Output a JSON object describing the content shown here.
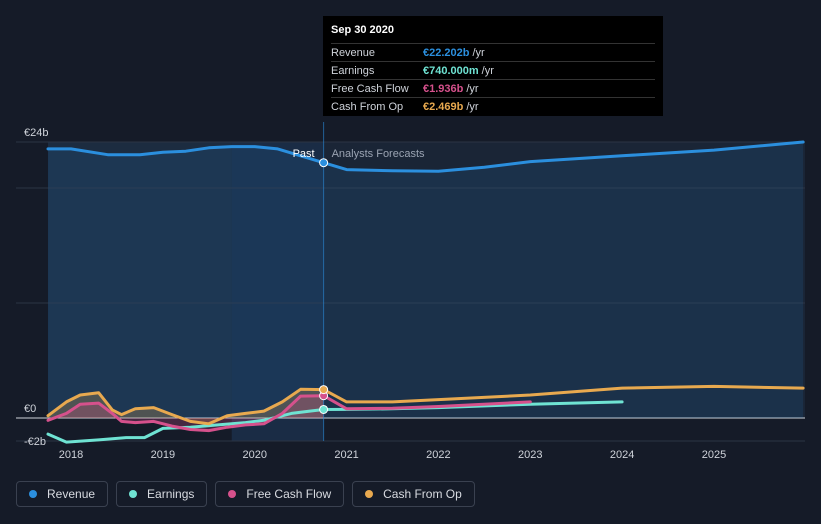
{
  "tooltip": {
    "date": "Sep 30 2020",
    "rows": [
      {
        "label": "Revenue",
        "value": "€22.202b",
        "unit": "/yr",
        "color": "#2b8fde"
      },
      {
        "label": "Earnings",
        "value": "€740.000m",
        "unit": "/yr",
        "color": "#6fe3d3"
      },
      {
        "label": "Free Cash Flow",
        "value": "€1.936b",
        "unit": "/yr",
        "color": "#d6518c"
      },
      {
        "label": "Cash From Op",
        "value": "€2.469b",
        "unit": "/yr",
        "color": "#e8a94f"
      }
    ]
  },
  "chart_data": {
    "type": "line",
    "ylim": [
      -2,
      24
    ],
    "y_tick_labels": [
      "€24b",
      "€0",
      "-€2b"
    ],
    "y_ticks": [
      24,
      0,
      -2
    ],
    "xlim": [
      2017.75,
      2025.97
    ],
    "x_ticks": [
      2018,
      2019,
      2020,
      2021,
      2022,
      2023,
      2024,
      2025
    ],
    "x_tick_labels": [
      "2018",
      "2019",
      "2020",
      "2021",
      "2022",
      "2023",
      "2024",
      "2025"
    ],
    "past_label": "Past",
    "forecast_label": "Analysts Forecasts",
    "divider_x": 2020.75,
    "series": [
      {
        "name": "Revenue",
        "color": "#2b8fde",
        "points": [
          [
            2017.75,
            23.4
          ],
          [
            2018.0,
            23.4
          ],
          [
            2018.4,
            22.9
          ],
          [
            2018.75,
            22.9
          ],
          [
            2019.0,
            23.1
          ],
          [
            2019.25,
            23.2
          ],
          [
            2019.5,
            23.5
          ],
          [
            2019.75,
            23.6
          ],
          [
            2020.0,
            23.6
          ],
          [
            2020.25,
            23.4
          ],
          [
            2020.5,
            22.8
          ],
          [
            2020.75,
            22.2
          ],
          [
            2021.0,
            21.6
          ],
          [
            2021.5,
            21.5
          ],
          [
            2022.0,
            21.45
          ],
          [
            2022.5,
            21.8
          ],
          [
            2023.0,
            22.3
          ],
          [
            2024.0,
            22.8
          ],
          [
            2025.0,
            23.3
          ],
          [
            2025.97,
            24.0
          ]
        ]
      },
      {
        "name": "Earnings",
        "color": "#6fe3d3",
        "points": [
          [
            2017.75,
            -1.4
          ],
          [
            2017.95,
            -2.1
          ],
          [
            2018.3,
            -1.9
          ],
          [
            2018.6,
            -1.7
          ],
          [
            2018.8,
            -1.7
          ],
          [
            2019.0,
            -0.9
          ],
          [
            2019.3,
            -0.8
          ],
          [
            2019.6,
            -0.6
          ],
          [
            2019.9,
            -0.4
          ],
          [
            2020.1,
            -0.2
          ],
          [
            2020.4,
            0.4
          ],
          [
            2020.6,
            0.6
          ],
          [
            2020.75,
            0.74
          ],
          [
            2021.0,
            0.75
          ],
          [
            2021.5,
            0.8
          ],
          [
            2022.0,
            0.9
          ],
          [
            2023.0,
            1.2
          ],
          [
            2024.0,
            1.4
          ]
        ]
      },
      {
        "name": "Free Cash Flow",
        "color": "#d6518c",
        "points": [
          [
            2017.75,
            -0.2
          ],
          [
            2017.95,
            0.4
          ],
          [
            2018.1,
            1.2
          ],
          [
            2018.3,
            1.3
          ],
          [
            2018.45,
            0.4
          ],
          [
            2018.55,
            -0.3
          ],
          [
            2018.7,
            -0.4
          ],
          [
            2018.9,
            -0.3
          ],
          [
            2019.1,
            -0.7
          ],
          [
            2019.3,
            -1.0
          ],
          [
            2019.5,
            -1.1
          ],
          [
            2019.7,
            -0.8
          ],
          [
            2019.9,
            -0.6
          ],
          [
            2020.1,
            -0.5
          ],
          [
            2020.3,
            0.4
          ],
          [
            2020.5,
            1.9
          ],
          [
            2020.75,
            1.936
          ],
          [
            2021.0,
            0.8
          ],
          [
            2021.5,
            0.85
          ],
          [
            2022.0,
            1.0
          ],
          [
            2023.0,
            1.4
          ]
        ]
      },
      {
        "name": "Cash From Op",
        "color": "#e8a94f",
        "points": [
          [
            2017.75,
            0.2
          ],
          [
            2017.95,
            1.4
          ],
          [
            2018.1,
            2.0
          ],
          [
            2018.3,
            2.2
          ],
          [
            2018.45,
            0.7
          ],
          [
            2018.55,
            0.3
          ],
          [
            2018.7,
            0.8
          ],
          [
            2018.9,
            0.9
          ],
          [
            2019.1,
            0.3
          ],
          [
            2019.3,
            -0.3
          ],
          [
            2019.5,
            -0.5
          ],
          [
            2019.7,
            0.2
          ],
          [
            2019.9,
            0.4
          ],
          [
            2020.1,
            0.6
          ],
          [
            2020.3,
            1.4
          ],
          [
            2020.5,
            2.5
          ],
          [
            2020.75,
            2.469
          ],
          [
            2021.0,
            1.4
          ],
          [
            2021.5,
            1.4
          ],
          [
            2022.0,
            1.6
          ],
          [
            2023.0,
            2.0
          ],
          [
            2024.0,
            2.6
          ],
          [
            2025.0,
            2.75
          ],
          [
            2025.97,
            2.6
          ]
        ]
      }
    ]
  },
  "legend": [
    {
      "label": "Revenue",
      "color": "#2b8fde"
    },
    {
      "label": "Earnings",
      "color": "#6fe3d3"
    },
    {
      "label": "Free Cash Flow",
      "color": "#d6518c"
    },
    {
      "label": "Cash From Op",
      "color": "#e8a94f"
    }
  ]
}
